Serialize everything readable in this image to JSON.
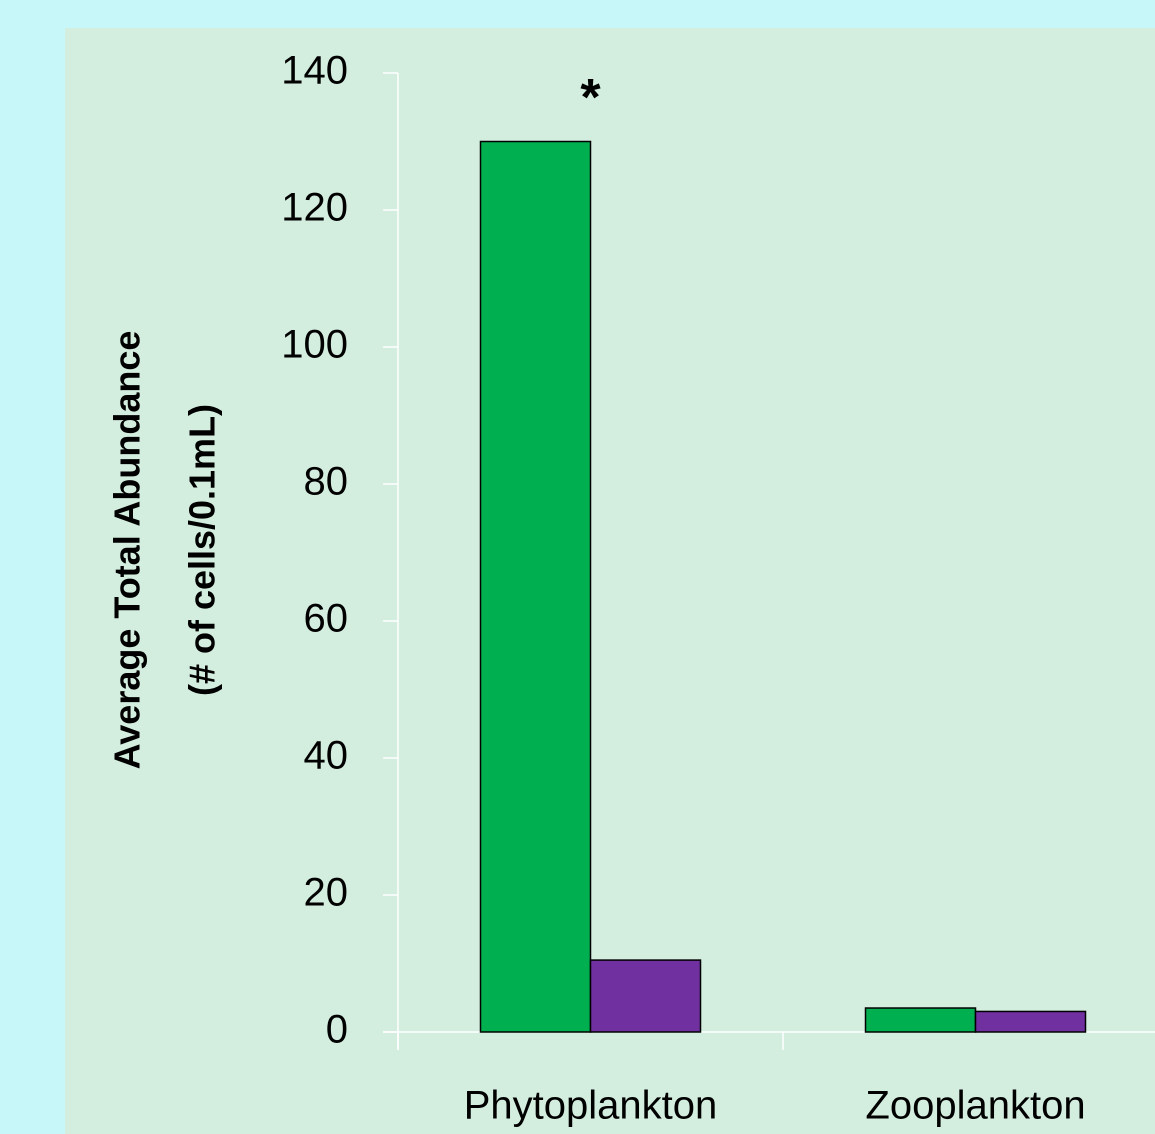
{
  "chart_data": {
    "type": "bar",
    "ylabel": [
      "Average Total Abundance",
      "(# of cells/0.1mL)"
    ],
    "categories": [
      "Phytoplankton",
      "Zooplankton"
    ],
    "series": [
      {
        "color": "#00b050",
        "values": [
          130,
          3.5
        ]
      },
      {
        "color": "#7030a0",
        "values": [
          10.5,
          3.0
        ]
      }
    ],
    "annotation": "*",
    "ylim": [
      0,
      140
    ],
    "yticks": [
      0,
      20,
      40,
      60,
      80,
      100,
      120,
      140
    ],
    "grid": false
  }
}
